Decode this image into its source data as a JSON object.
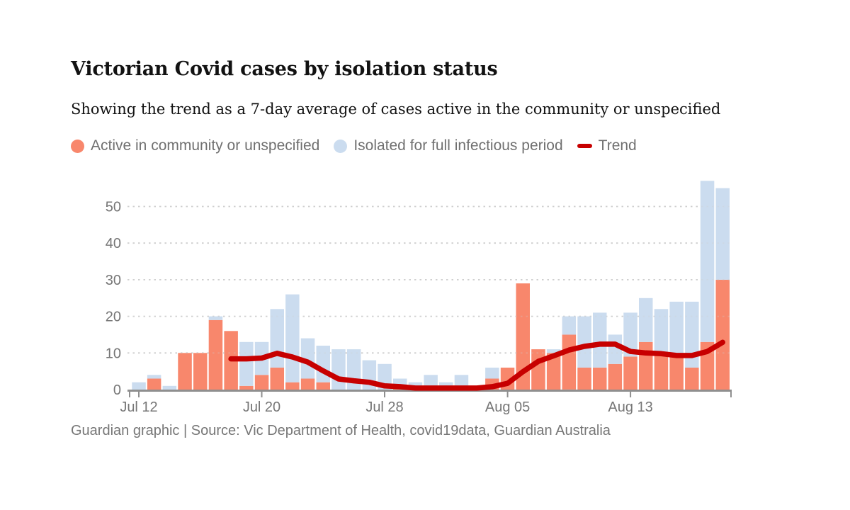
{
  "title": "Victorian Covid cases by isolation status",
  "subtitle": "Showing the trend as a 7-day average of cases active in the community or unspecified",
  "source": "Guardian graphic | Source: Vic Department of Health, covid19data, Guardian Australia",
  "colors": {
    "active": "#f8876c",
    "isolated": "#cbdcef",
    "trend": "#c70000",
    "axis": "#8f8f8f",
    "gridline": "#cfcfcf",
    "text_dark": "#121212",
    "text_gray": "#767676"
  },
  "legend": {
    "items": [
      {
        "label": "Active in community or unspecified",
        "color": "#f8876c",
        "marker": "circle"
      },
      {
        "label": "Isolated for full infectious period",
        "color": "#cbdcef",
        "marker": "circle"
      },
      {
        "label": "Trend",
        "color": "#c70000",
        "marker": "dash"
      }
    ]
  },
  "chart_data": {
    "type": "bar",
    "stacked": true,
    "title": "Victorian Covid cases by isolation status",
    "xlabel": "",
    "ylabel": "",
    "ylim": [
      0,
      57
    ],
    "yticks": [
      0,
      10,
      20,
      30,
      40,
      50
    ],
    "grid": true,
    "legend_position": "top",
    "categories": [
      "Jul 12",
      "Jul 13",
      "Jul 14",
      "Jul 15",
      "Jul 16",
      "Jul 17",
      "Jul 18",
      "Jul 19",
      "Jul 20",
      "Jul 21",
      "Jul 22",
      "Jul 23",
      "Jul 24",
      "Jul 25",
      "Jul 26",
      "Jul 27",
      "Jul 28",
      "Jul 29",
      "Jul 30",
      "Jul 31",
      "Aug 01",
      "Aug 02",
      "Aug 03",
      "Aug 04",
      "Aug 05",
      "Aug 06",
      "Aug 07",
      "Aug 08",
      "Aug 09",
      "Aug 10",
      "Aug 11",
      "Aug 12",
      "Aug 13",
      "Aug 14",
      "Aug 15",
      "Aug 16",
      "Aug 17",
      "Aug 18",
      "Aug 19"
    ],
    "series": [
      {
        "name": "Active in community or unspecified",
        "color": "#f8876c",
        "values": [
          0,
          3,
          0,
          10,
          10,
          19,
          16,
          1,
          4,
          6,
          2,
          3,
          2,
          0,
          0,
          0,
          0,
          1,
          0,
          0,
          0,
          0,
          0,
          3,
          6,
          29,
          11,
          10,
          15,
          6,
          6,
          7,
          9,
          13,
          10,
          10,
          6,
          13,
          30
        ]
      },
      {
        "name": "Isolated for full infectious period",
        "color": "#cbdcef",
        "values": [
          2,
          1,
          1,
          0,
          0,
          1,
          0,
          12,
          9,
          16,
          24,
          11,
          10,
          11,
          11,
          8,
          7,
          2,
          2,
          4,
          2,
          4,
          0,
          3,
          0,
          0,
          0,
          1,
          5,
          14,
          15,
          8,
          12,
          12,
          12,
          14,
          18,
          44,
          25
        ]
      }
    ],
    "trend_line": {
      "name": "Trend",
      "color": "#c70000",
      "start_index": 6,
      "values": [
        8.4,
        8.4,
        8.6,
        9.9,
        8.9,
        7.5,
        5.1,
        2.9,
        2.4,
        2.0,
        1.0,
        0.8,
        0.4,
        0.4,
        0.4,
        0.4,
        0.4,
        0.8,
        1.7,
        4.9,
        7.7,
        9.2,
        10.8,
        11.8,
        12.4,
        12.4,
        10.4,
        10.0,
        9.8,
        9.3,
        9.3,
        10.4,
        12.9
      ]
    },
    "xticks": [
      {
        "index": 0,
        "label": "Jul 12"
      },
      {
        "index": 8,
        "label": "Jul 20"
      },
      {
        "index": 16,
        "label": "Jul 28"
      },
      {
        "index": 24,
        "label": "Aug 05"
      },
      {
        "index": 32,
        "label": "Aug 13"
      }
    ]
  }
}
